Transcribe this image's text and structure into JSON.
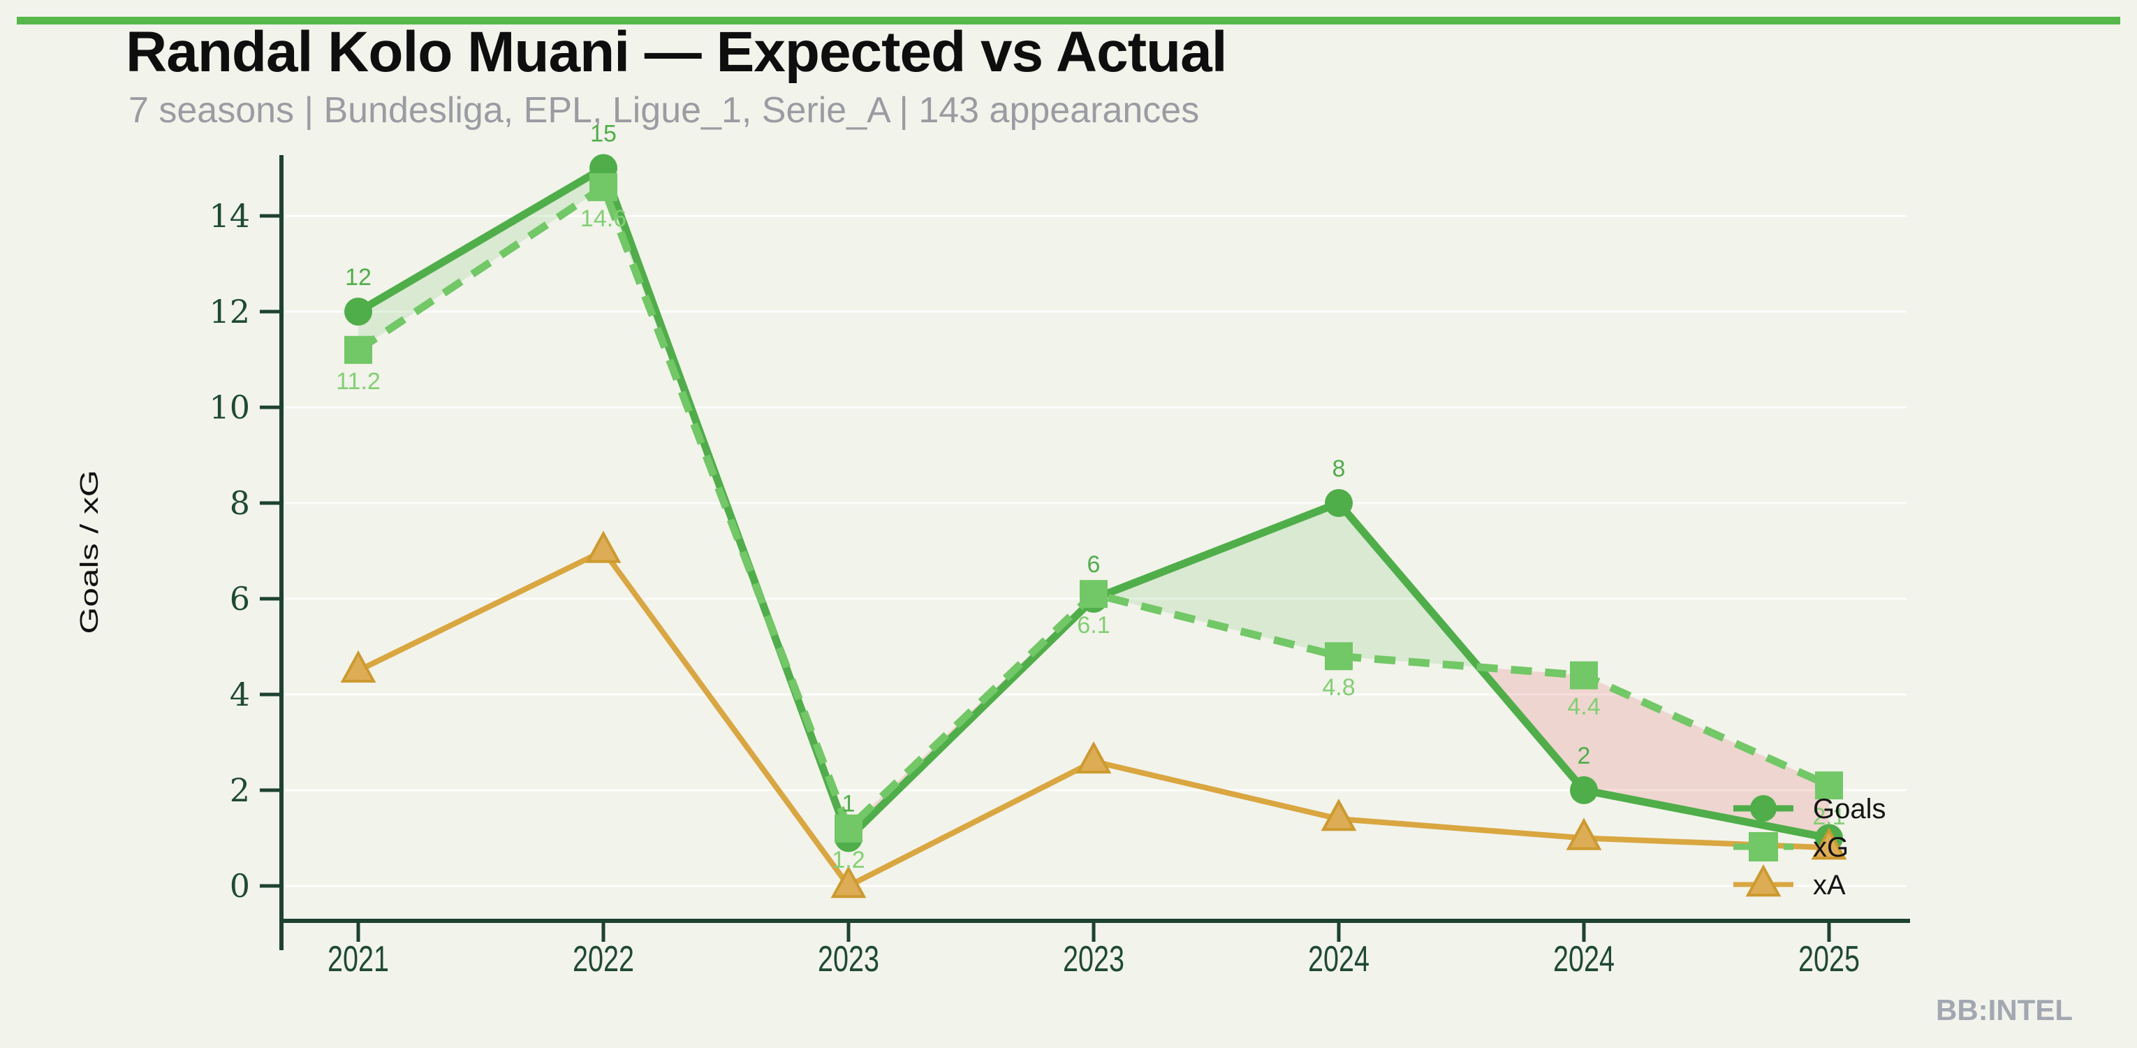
{
  "page": {
    "background_color": "#f2f3eb",
    "accent_bar_color": "#55b849"
  },
  "header": {
    "title": "Randal Kolo Muani — Expected vs Actual",
    "subtitle": "7 seasons | Bundesliga, EPL, Ligue_1, Serie_A | 143 appearances"
  },
  "watermark": "BB:INTEL",
  "chart_data": {
    "type": "line",
    "title": "Randal Kolo Muani — Expected vs Actual",
    "categories": [
      "2021",
      "2022",
      "2023",
      "2023",
      "2024",
      "2024",
      "2025"
    ],
    "xlabel": "",
    "ylabel": "Goals / xG",
    "ylim": [
      0,
      15.5
    ],
    "yticks": [
      0,
      2,
      4,
      6,
      8,
      10,
      12,
      14
    ],
    "grid": "horizontal-faint",
    "legend_position": "inside-lower-right",
    "series": [
      {
        "name": "Goals",
        "style": "solid",
        "marker": "circle",
        "color": "#4fae49",
        "values": [
          12,
          15,
          1,
          6,
          8,
          2,
          1
        ],
        "point_labels": [
          "12",
          "15",
          "1",
          "6",
          "8",
          "2",
          ""
        ]
      },
      {
        "name": "xG",
        "style": "dashed",
        "marker": "square",
        "color": "#72c766",
        "values": [
          11.2,
          14.6,
          1.2,
          6.1,
          4.8,
          4.4,
          2.1
        ],
        "point_labels": [
          "11.2",
          "14.6",
          "1.2",
          "6.1",
          "4.8",
          "4.4",
          "2.1"
        ]
      },
      {
        "name": "xA",
        "style": "solid",
        "marker": "triangle",
        "color": "#d9a640",
        "values": [
          4.5,
          7,
          0,
          2.6,
          1.4,
          1,
          0.8
        ],
        "point_labels": [
          "",
          "",
          "",
          "",
          "",
          "",
          ""
        ]
      }
    ],
    "fill_between": {
      "upper_series": "Goals",
      "lower_series": "xG",
      "positive_color": "rgba(96,182,86,0.17)",
      "negative_color": "rgba(225,110,110,0.22)"
    },
    "axis_color": "#1d4230",
    "tick_label_color": "#1f4a31",
    "gridline_color": "rgba(255,255,255,0.85)"
  }
}
